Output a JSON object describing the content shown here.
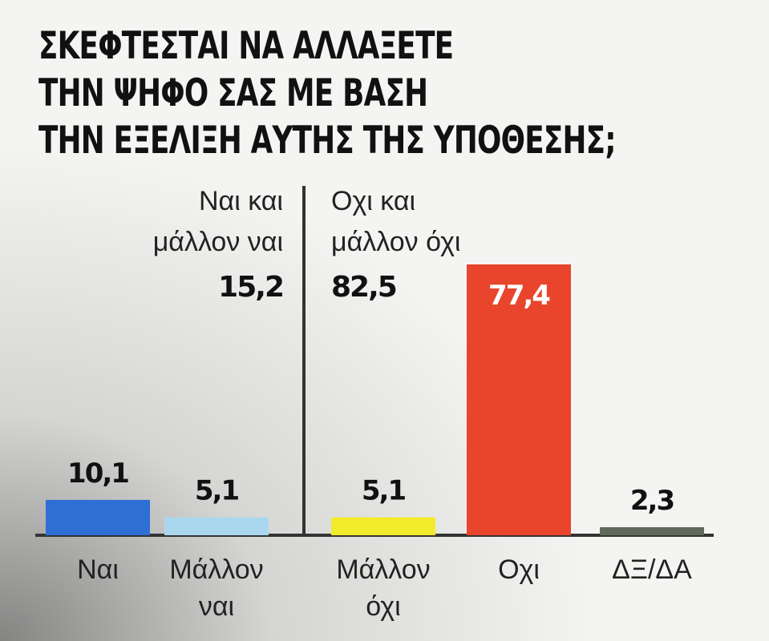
{
  "chart_data": {
    "type": "bar",
    "title_lines": [
      "ΣΚΕΦΤΕΣΤΑΙ ΝΑ ΑΛΛΑΞΕΤΕ",
      "ΤΗΝ ΨΗΦΟ ΣΑΣ ΜΕ ΒΑΣΗ",
      "ΤΗΝ ΕΞΕΛΙΞΗ ΑΥΤΗΣ ΤΗΣ ΥΠΟΘΕΣΗΣ;"
    ],
    "categories": [
      [
        "Ναι"
      ],
      [
        "Μάλλον",
        "ναι"
      ],
      [
        "Μάλλον",
        "όχι"
      ],
      [
        "Οχι"
      ],
      [
        "ΔΞ/ΔΑ"
      ]
    ],
    "values": [
      10.1,
      5.1,
      5.1,
      77.4,
      2.3
    ],
    "value_labels": [
      "10,1",
      "5,1",
      "5,1",
      "77,4",
      "2,3"
    ],
    "colors": [
      "#2f6fd3",
      "#a9d8ee",
      "#f2ea2a",
      "#e8452c",
      "#5f6a5c"
    ],
    "groups": [
      {
        "label_lines": [
          "Ναι και",
          "μάλλον ναι"
        ],
        "value": 15.2,
        "value_label": "15,2"
      },
      {
        "label_lines": [
          "Οχι και",
          "μάλλον όχι"
        ],
        "value": 82.5,
        "value_label": "82,5"
      }
    ],
    "ylim": [
      0,
      77.4
    ],
    "grid": false,
    "legend": "none"
  }
}
